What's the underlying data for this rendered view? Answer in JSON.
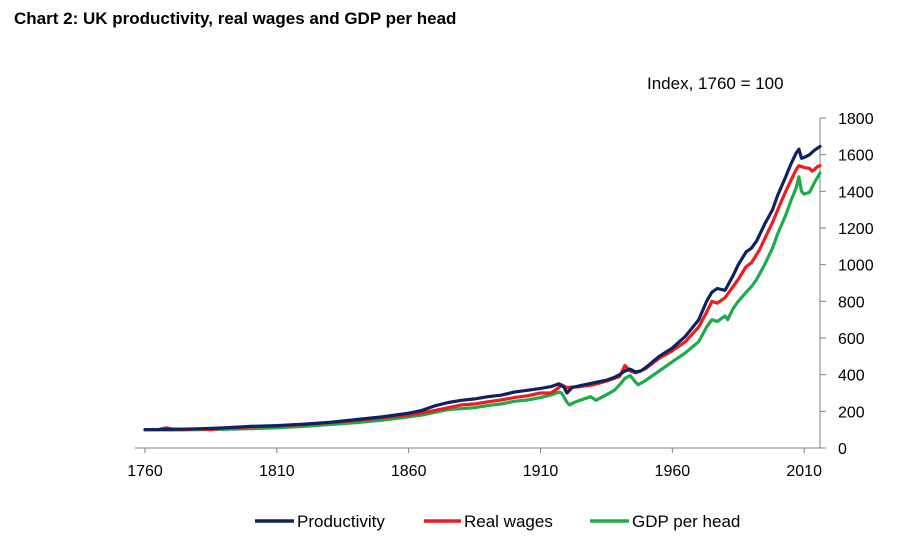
{
  "chart_data": {
    "type": "line",
    "title": "Chart 2:  UK productivity, real wages and GDP per head",
    "unit_label": "Index, 1760 = 100",
    "xlim": [
      1760,
      2016
    ],
    "ylim": [
      0,
      1800
    ],
    "x_ticks": [
      1760,
      1810,
      1860,
      1910,
      1960,
      2010
    ],
    "y_ticks": [
      0,
      200,
      400,
      600,
      800,
      1000,
      1200,
      1400,
      1600,
      1800
    ],
    "y_axis_side": "right",
    "grid": false,
    "legend_position": "bottom",
    "series": [
      {
        "name": "Productivity",
        "color": "#0d2260",
        "points": [
          [
            1760,
            100
          ],
          [
            1770,
            102
          ],
          [
            1780,
            105
          ],
          [
            1790,
            110
          ],
          [
            1800,
            118
          ],
          [
            1810,
            122
          ],
          [
            1820,
            130
          ],
          [
            1830,
            140
          ],
          [
            1840,
            155
          ],
          [
            1850,
            170
          ],
          [
            1860,
            190
          ],
          [
            1865,
            205
          ],
          [
            1870,
            230
          ],
          [
            1875,
            248
          ],
          [
            1880,
            260
          ],
          [
            1885,
            268
          ],
          [
            1890,
            280
          ],
          [
            1895,
            288
          ],
          [
            1900,
            305
          ],
          [
            1905,
            315
          ],
          [
            1910,
            325
          ],
          [
            1914,
            335
          ],
          [
            1917,
            350
          ],
          [
            1919,
            330
          ],
          [
            1920,
            300
          ],
          [
            1922,
            330
          ],
          [
            1925,
            340
          ],
          [
            1930,
            355
          ],
          [
            1935,
            370
          ],
          [
            1938,
            385
          ],
          [
            1940,
            400
          ],
          [
            1942,
            420
          ],
          [
            1944,
            430
          ],
          [
            1946,
            415
          ],
          [
            1948,
            420
          ],
          [
            1950,
            440
          ],
          [
            1955,
            500
          ],
          [
            1960,
            545
          ],
          [
            1965,
            610
          ],
          [
            1970,
            700
          ],
          [
            1973,
            800
          ],
          [
            1975,
            850
          ],
          [
            1977,
            870
          ],
          [
            1980,
            860
          ],
          [
            1983,
            940
          ],
          [
            1985,
            1000
          ],
          [
            1988,
            1070
          ],
          [
            1990,
            1090
          ],
          [
            1992,
            1130
          ],
          [
            1995,
            1220
          ],
          [
            1998,
            1300
          ],
          [
            2000,
            1380
          ],
          [
            2003,
            1480
          ],
          [
            2005,
            1550
          ],
          [
            2007,
            1610
          ],
          [
            2008,
            1630
          ],
          [
            2009,
            1580
          ],
          [
            2010,
            1585
          ],
          [
            2012,
            1600
          ],
          [
            2014,
            1625
          ],
          [
            2016,
            1645
          ]
        ]
      },
      {
        "name": "Real wages",
        "color": "#ee1c1c",
        "points": [
          [
            1760,
            100
          ],
          [
            1765,
            100
          ],
          [
            1768,
            110
          ],
          [
            1770,
            105
          ],
          [
            1775,
            100
          ],
          [
            1780,
            105
          ],
          [
            1785,
            100
          ],
          [
            1790,
            108
          ],
          [
            1795,
            110
          ],
          [
            1800,
            115
          ],
          [
            1810,
            120
          ],
          [
            1820,
            128
          ],
          [
            1830,
            138
          ],
          [
            1840,
            150
          ],
          [
            1850,
            165
          ],
          [
            1860,
            180
          ],
          [
            1865,
            192
          ],
          [
            1870,
            205
          ],
          [
            1875,
            220
          ],
          [
            1880,
            235
          ],
          [
            1885,
            240
          ],
          [
            1890,
            252
          ],
          [
            1895,
            262
          ],
          [
            1900,
            275
          ],
          [
            1905,
            285
          ],
          [
            1910,
            300
          ],
          [
            1914,
            300
          ],
          [
            1917,
            330
          ],
          [
            1918,
            345
          ],
          [
            1920,
            330
          ],
          [
            1925,
            335
          ],
          [
            1930,
            345
          ],
          [
            1935,
            365
          ],
          [
            1940,
            390
          ],
          [
            1942,
            450
          ],
          [
            1944,
            420
          ],
          [
            1946,
            410
          ],
          [
            1948,
            420
          ],
          [
            1950,
            435
          ],
          [
            1955,
            490
          ],
          [
            1960,
            530
          ],
          [
            1965,
            580
          ],
          [
            1970,
            660
          ],
          [
            1973,
            740
          ],
          [
            1975,
            800
          ],
          [
            1977,
            790
          ],
          [
            1980,
            820
          ],
          [
            1983,
            880
          ],
          [
            1985,
            920
          ],
          [
            1988,
            990
          ],
          [
            1990,
            1010
          ],
          [
            1993,
            1080
          ],
          [
            1995,
            1140
          ],
          [
            1998,
            1230
          ],
          [
            2000,
            1300
          ],
          [
            2003,
            1400
          ],
          [
            2005,
            1460
          ],
          [
            2007,
            1520
          ],
          [
            2008,
            1540
          ],
          [
            2010,
            1530
          ],
          [
            2012,
            1525
          ],
          [
            2013,
            1510
          ],
          [
            2014,
            1520
          ],
          [
            2015,
            1535
          ],
          [
            2016,
            1540
          ]
        ]
      },
      {
        "name": "GDP per head",
        "color": "#1eab4a",
        "points": [
          [
            1760,
            100
          ],
          [
            1770,
            98
          ],
          [
            1780,
            100
          ],
          [
            1790,
            102
          ],
          [
            1800,
            106
          ],
          [
            1810,
            110
          ],
          [
            1820,
            118
          ],
          [
            1830,
            128
          ],
          [
            1840,
            138
          ],
          [
            1850,
            152
          ],
          [
            1860,
            170
          ],
          [
            1865,
            180
          ],
          [
            1870,
            195
          ],
          [
            1875,
            210
          ],
          [
            1880,
            215
          ],
          [
            1885,
            220
          ],
          [
            1890,
            232
          ],
          [
            1895,
            240
          ],
          [
            1900,
            255
          ],
          [
            1905,
            262
          ],
          [
            1910,
            275
          ],
          [
            1914,
            290
          ],
          [
            1917,
            305
          ],
          [
            1918,
            300
          ],
          [
            1920,
            250
          ],
          [
            1921,
            235
          ],
          [
            1923,
            250
          ],
          [
            1925,
            260
          ],
          [
            1929,
            280
          ],
          [
            1931,
            260
          ],
          [
            1935,
            290
          ],
          [
            1938,
            315
          ],
          [
            1940,
            345
          ],
          [
            1942,
            380
          ],
          [
            1944,
            395
          ],
          [
            1946,
            360
          ],
          [
            1947,
            345
          ],
          [
            1950,
            370
          ],
          [
            1955,
            420
          ],
          [
            1960,
            470
          ],
          [
            1965,
            520
          ],
          [
            1970,
            580
          ],
          [
            1973,
            660
          ],
          [
            1975,
            700
          ],
          [
            1977,
            690
          ],
          [
            1980,
            720
          ],
          [
            1981,
            700
          ],
          [
            1983,
            760
          ],
          [
            1985,
            800
          ],
          [
            1988,
            850
          ],
          [
            1990,
            880
          ],
          [
            1992,
            920
          ],
          [
            1995,
            1000
          ],
          [
            1998,
            1090
          ],
          [
            2000,
            1170
          ],
          [
            2003,
            1270
          ],
          [
            2005,
            1350
          ],
          [
            2007,
            1420
          ],
          [
            2008,
            1480
          ],
          [
            2009,
            1400
          ],
          [
            2010,
            1385
          ],
          [
            2012,
            1395
          ],
          [
            2014,
            1450
          ],
          [
            2016,
            1500
          ]
        ]
      }
    ]
  }
}
